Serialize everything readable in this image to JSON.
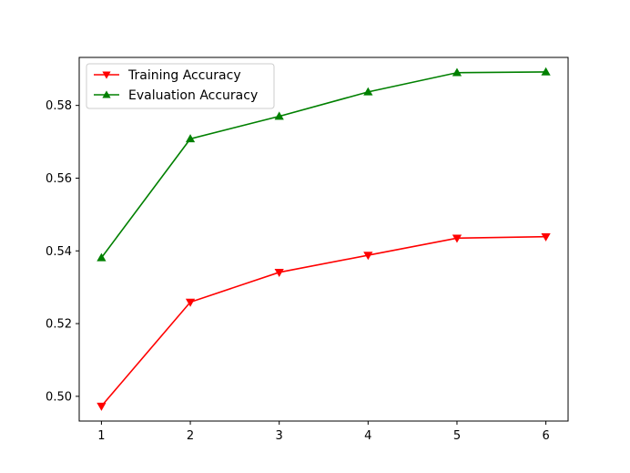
{
  "chart_data": {
    "type": "line",
    "title": "",
    "xlabel": "",
    "ylabel": "",
    "x": [
      1,
      2,
      3,
      4,
      5,
      6
    ],
    "xlim": [
      0.75,
      6.25
    ],
    "ylim": [
      0.4932,
      0.5932
    ],
    "yticks": [
      0.5,
      0.52,
      0.54,
      0.56,
      0.58
    ],
    "ytick_labels": [
      "0.50",
      "0.52",
      "0.54",
      "0.56",
      "0.58"
    ],
    "xtick_labels": [
      "1",
      "2",
      "3",
      "4",
      "5",
      "6"
    ],
    "grid": false,
    "legend_position": "top-left",
    "series": [
      {
        "name": "Training Accuracy",
        "color": "#ff0000",
        "marker": "triangle-down",
        "values": [
          0.4973,
          0.5259,
          0.5341,
          0.5388,
          0.5435,
          0.5439
        ]
      },
      {
        "name": "Evaluation Accuracy",
        "color": "#008000",
        "marker": "triangle-up",
        "values": [
          0.5381,
          0.5708,
          0.577,
          0.5837,
          0.589,
          0.5892
        ]
      }
    ]
  }
}
